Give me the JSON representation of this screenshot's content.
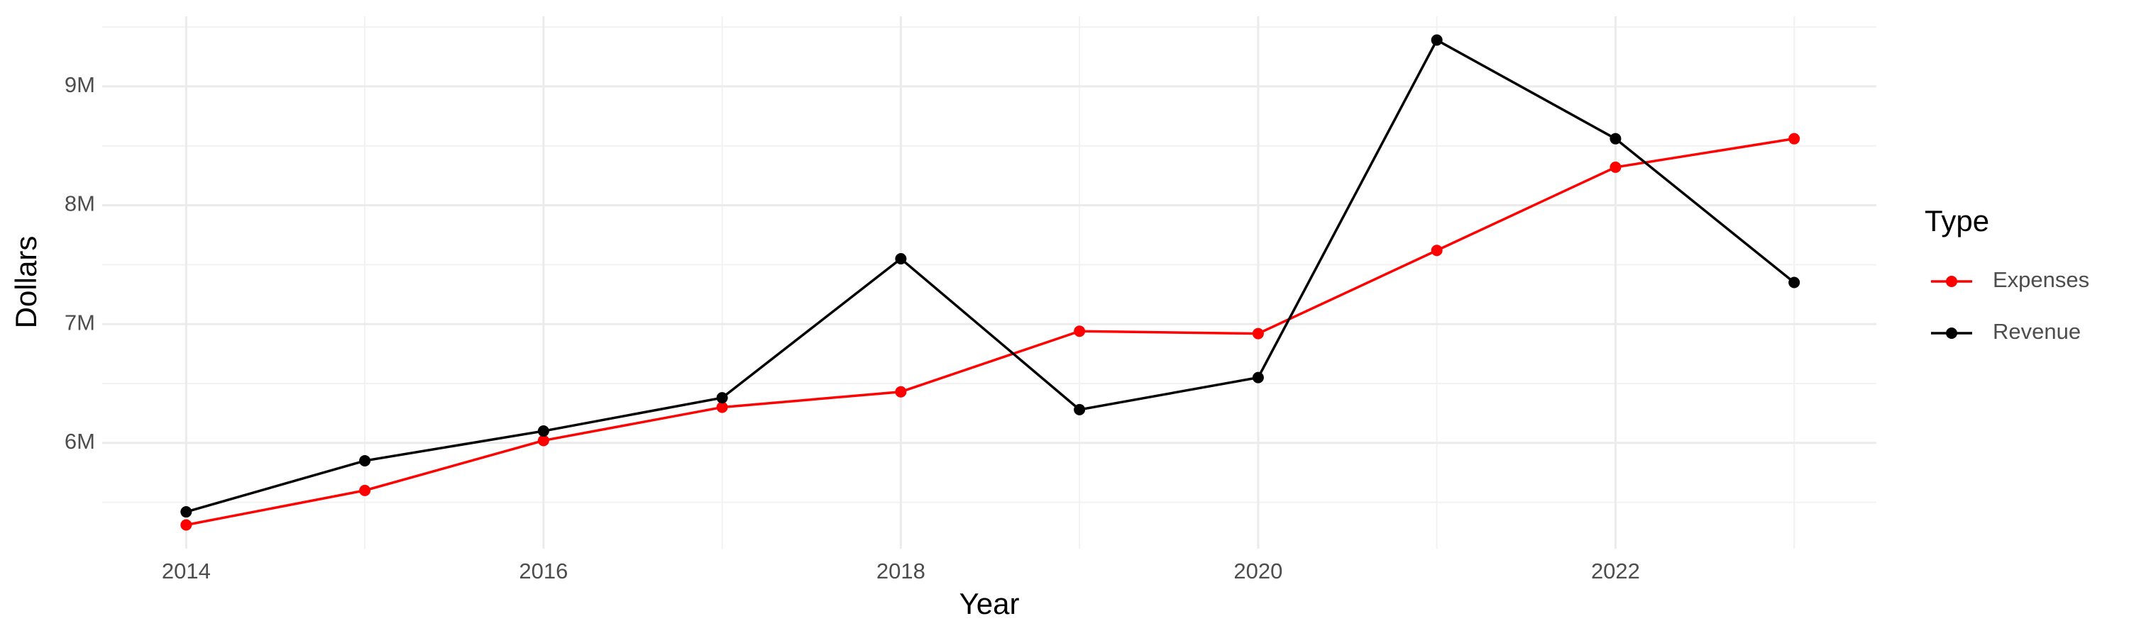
{
  "chart_data": {
    "type": "line",
    "x_label": "Year",
    "y_label": "Dollars",
    "legend_title": "Type",
    "x": [
      2014,
      2015,
      2016,
      2017,
      2018,
      2019,
      2020,
      2021,
      2022,
      2023
    ],
    "series": [
      {
        "name": "Expenses",
        "color": "#ff0000",
        "values": [
          5310000,
          5600000,
          6020000,
          6300000,
          6430000,
          6940000,
          6920000,
          7620000,
          8320000,
          8560000
        ]
      },
      {
        "name": "Revenue",
        "color": "#000000",
        "values": [
          5420000,
          5850000,
          6100000,
          6380000,
          7550000,
          6280000,
          6550000,
          9390000,
          8560000,
          7350000
        ]
      }
    ],
    "xlim": [
      2013.53,
      2023.46
    ],
    "ylim": [
      5110000,
      9590000
    ],
    "xticks": [
      2014,
      2016,
      2018,
      2020,
      2022
    ],
    "yticks": [
      {
        "value": 6000000,
        "label": "6M"
      },
      {
        "value": 7000000,
        "label": "7M"
      },
      {
        "value": 8000000,
        "label": "8M"
      },
      {
        "value": 9000000,
        "label": "9M"
      }
    ],
    "xminor": [
      2015,
      2017,
      2019,
      2021,
      2023
    ],
    "yminor": [
      5500000,
      6500000,
      7500000,
      8500000,
      9500000
    ],
    "grid": true,
    "legend_position": "right"
  }
}
